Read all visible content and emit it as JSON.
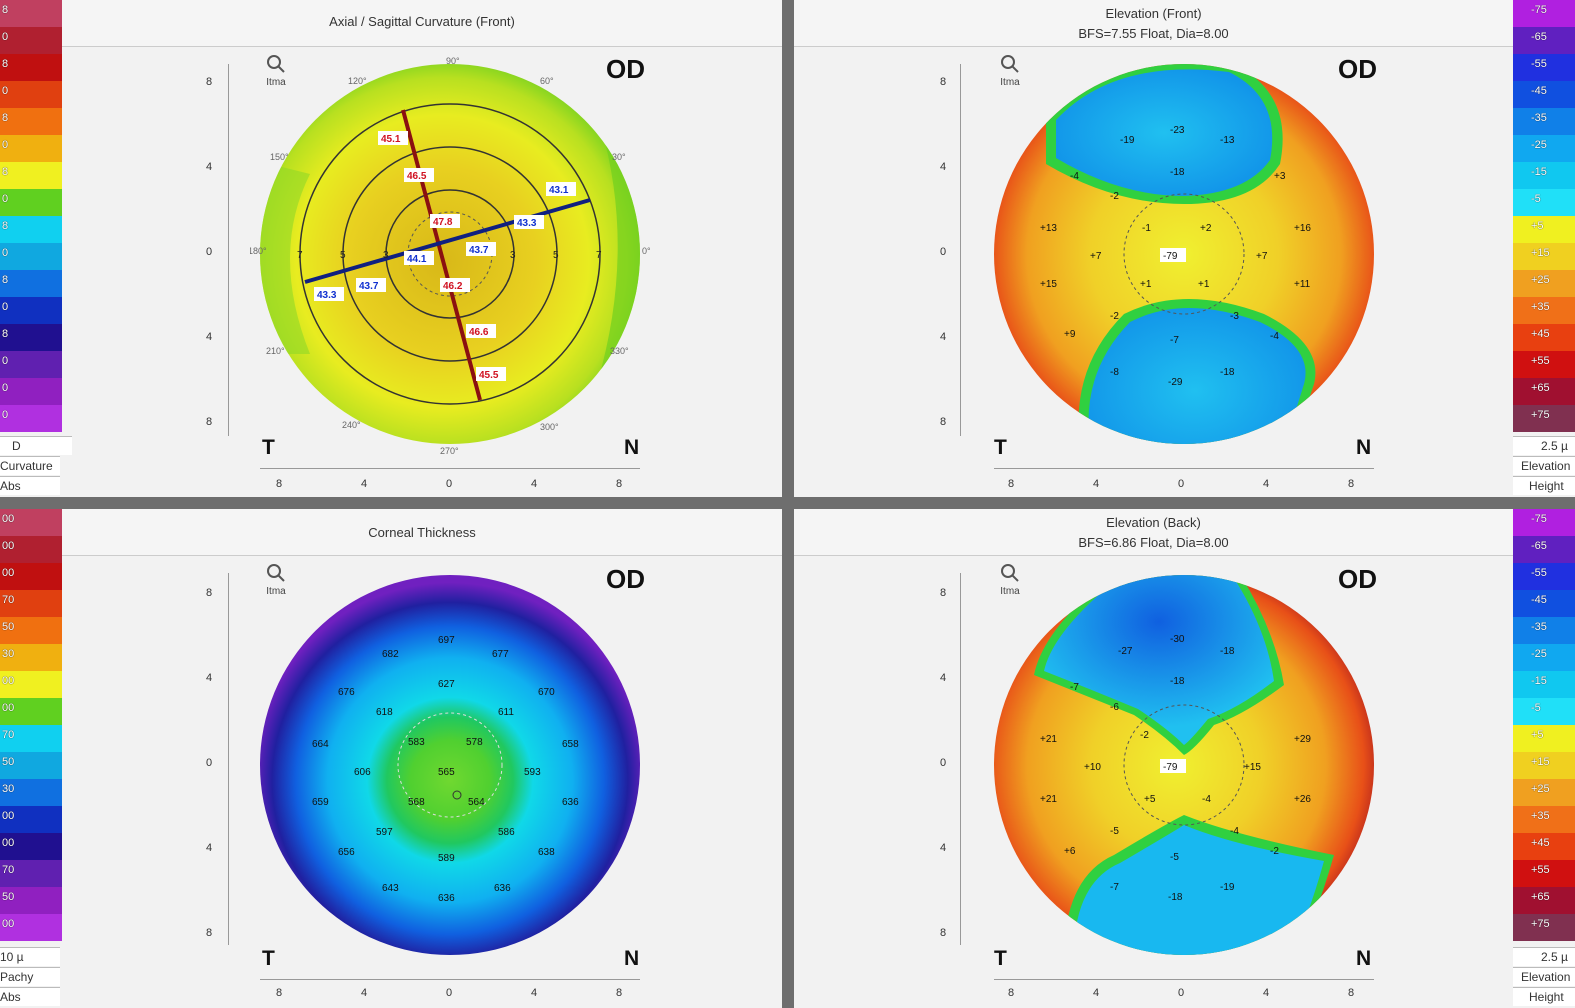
{
  "eye_label": "OD",
  "temporal_label": "T",
  "nasal_label": "N",
  "zoom_label": "Itma",
  "axis_ticks": [
    "8",
    "4",
    "0",
    "4",
    "8"
  ],
  "ring_degrees": [
    "90°",
    "60°",
    "30°",
    "0°",
    "330°",
    "300°",
    "270°",
    "240°",
    "210°",
    "180°",
    "150°",
    "120°"
  ],
  "panels": {
    "axial": {
      "title": "Axial / Sagittal Curvature (Front)",
      "subtitle": "",
      "legend": [
        "D",
        "Curvature",
        "Abs"
      ],
      "scale_values": [
        "8",
        "0",
        "8",
        "0",
        "8",
        "0",
        "8",
        "0",
        "8",
        "0",
        "8",
        "0",
        "8",
        "0",
        "0",
        "0"
      ],
      "ring_labels": [
        "7",
        "5",
        "3",
        "1",
        "3",
        "5",
        "7"
      ],
      "steep_values": [
        "45.1",
        "46.5",
        "47.8",
        "46.2",
        "46.6",
        "45.5"
      ],
      "flat_values": [
        "43.1",
        "43.3",
        "43.7",
        "44.1",
        "43.7",
        "43.3"
      ]
    },
    "elev_front": {
      "title": "Elevation (Front)",
      "subtitle": "BFS=7.55 Float, Dia=8.00",
      "legend": [
        "2.5 µ",
        "Elevation",
        "Height"
      ],
      "scale_values": [
        "-75",
        "-65",
        "-55",
        "-45",
        "-35",
        "-25",
        "-15",
        "-5",
        "+5",
        "+15",
        "+25",
        "+35",
        "+45",
        "+55",
        "+65",
        "+75"
      ],
      "values": [
        "-19",
        "-23",
        "-13",
        "-18",
        "-4",
        "-2",
        "+3",
        "+13",
        "-1",
        "+2",
        "+16",
        "+7",
        "+7",
        "-79",
        "+15",
        "+1",
        "+1",
        "+11",
        "-2",
        "-3",
        "+9",
        "-7",
        "-4",
        "-8",
        "-29",
        "-18"
      ]
    },
    "thickness": {
      "title": "Corneal Thickness",
      "subtitle": "",
      "legend": [
        "10 µ",
        "Pachy",
        "Abs"
      ],
      "scale_values": [
        "00",
        "00",
        "00",
        "70",
        "50",
        "30",
        "00",
        "00",
        "70",
        "50",
        "30",
        "00",
        "00",
        "70",
        "50",
        "00"
      ],
      "values": [
        "697",
        "682",
        "677",
        "676",
        "627",
        "670",
        "618",
        "611",
        "664",
        "583",
        "578",
        "658",
        "606",
        "565",
        "593",
        "659",
        "568",
        "564",
        "636",
        "597",
        "586",
        "656",
        "589",
        "638",
        "643",
        "636",
        "636"
      ]
    },
    "elev_back": {
      "title": "Elevation (Back)",
      "subtitle": "BFS=6.86 Float, Dia=8.00",
      "legend": [
        "2.5 µ",
        "Elevation",
        "Height"
      ],
      "scale_values": [
        "-75",
        "-65",
        "-55",
        "-45",
        "-35",
        "-25",
        "-15",
        "-5",
        "+5",
        "+15",
        "+25",
        "+35",
        "+45",
        "+55",
        "+65",
        "+75"
      ],
      "values": [
        "-27",
        "-30",
        "-18",
        "-18",
        "-7",
        "-6",
        "-2",
        "+21",
        "+29",
        "+10",
        "-79",
        "+15",
        "+21",
        "+5",
        "-4",
        "+26",
        "-5",
        "-4",
        "+6",
        "-5",
        "-2",
        "-7",
        "-18",
        "-19"
      ]
    }
  },
  "colors": {
    "purple": "#a020d0",
    "blue": "#1040e0",
    "cyan": "#10c8f0",
    "green": "#30d030",
    "yellow": "#f0f020",
    "orange": "#f08020",
    "red": "#d01010",
    "maroon": "#7a1020"
  }
}
